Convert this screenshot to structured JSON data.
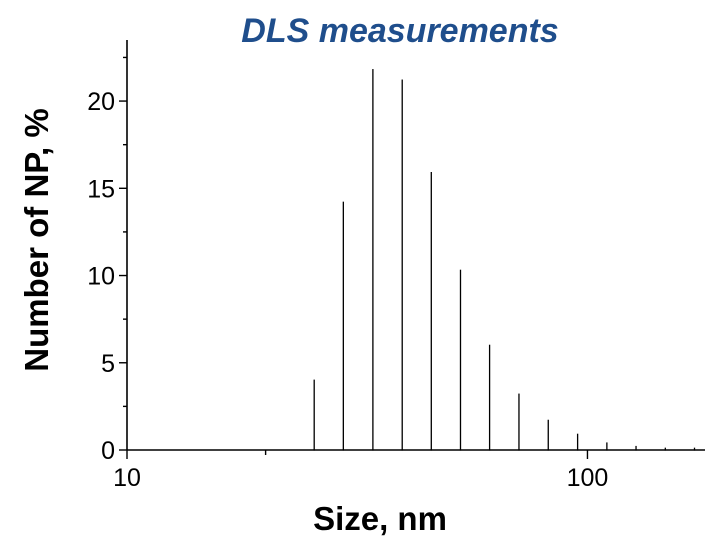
{
  "chart_data": {
    "type": "bar",
    "title": "DLS measurements",
    "xlabel": "Size, nm",
    "ylabel": "Number of NP, %",
    "x_scale": "log",
    "xlim": [
      10,
      180
    ],
    "ylim": [
      0,
      23.5
    ],
    "x_ticks": [
      10,
      100
    ],
    "x_tick_labels": [
      "10",
      "100"
    ],
    "y_ticks": [
      0,
      5,
      10,
      15,
      20
    ],
    "y_tick_labels": [
      "0",
      "5",
      "10",
      "15",
      "20"
    ],
    "grid": false,
    "bar_color": "#ff0000",
    "bars": [
      {
        "x": 25.5,
        "value": 4.0
      },
      {
        "x": 29.5,
        "value": 14.2
      },
      {
        "x": 34.2,
        "value": 21.8
      },
      {
        "x": 39.6,
        "value": 21.2
      },
      {
        "x": 45.8,
        "value": 15.9
      },
      {
        "x": 53.0,
        "value": 10.3
      },
      {
        "x": 61.3,
        "value": 6.0
      },
      {
        "x": 71.0,
        "value": 3.2
      },
      {
        "x": 82.2,
        "value": 1.7
      },
      {
        "x": 95.2,
        "value": 0.9
      },
      {
        "x": 110.2,
        "value": 0.4
      },
      {
        "x": 127.5,
        "value": 0.2
      },
      {
        "x": 147.6,
        "value": 0.1
      },
      {
        "x": 170.8,
        "value": 0.1
      }
    ]
  }
}
